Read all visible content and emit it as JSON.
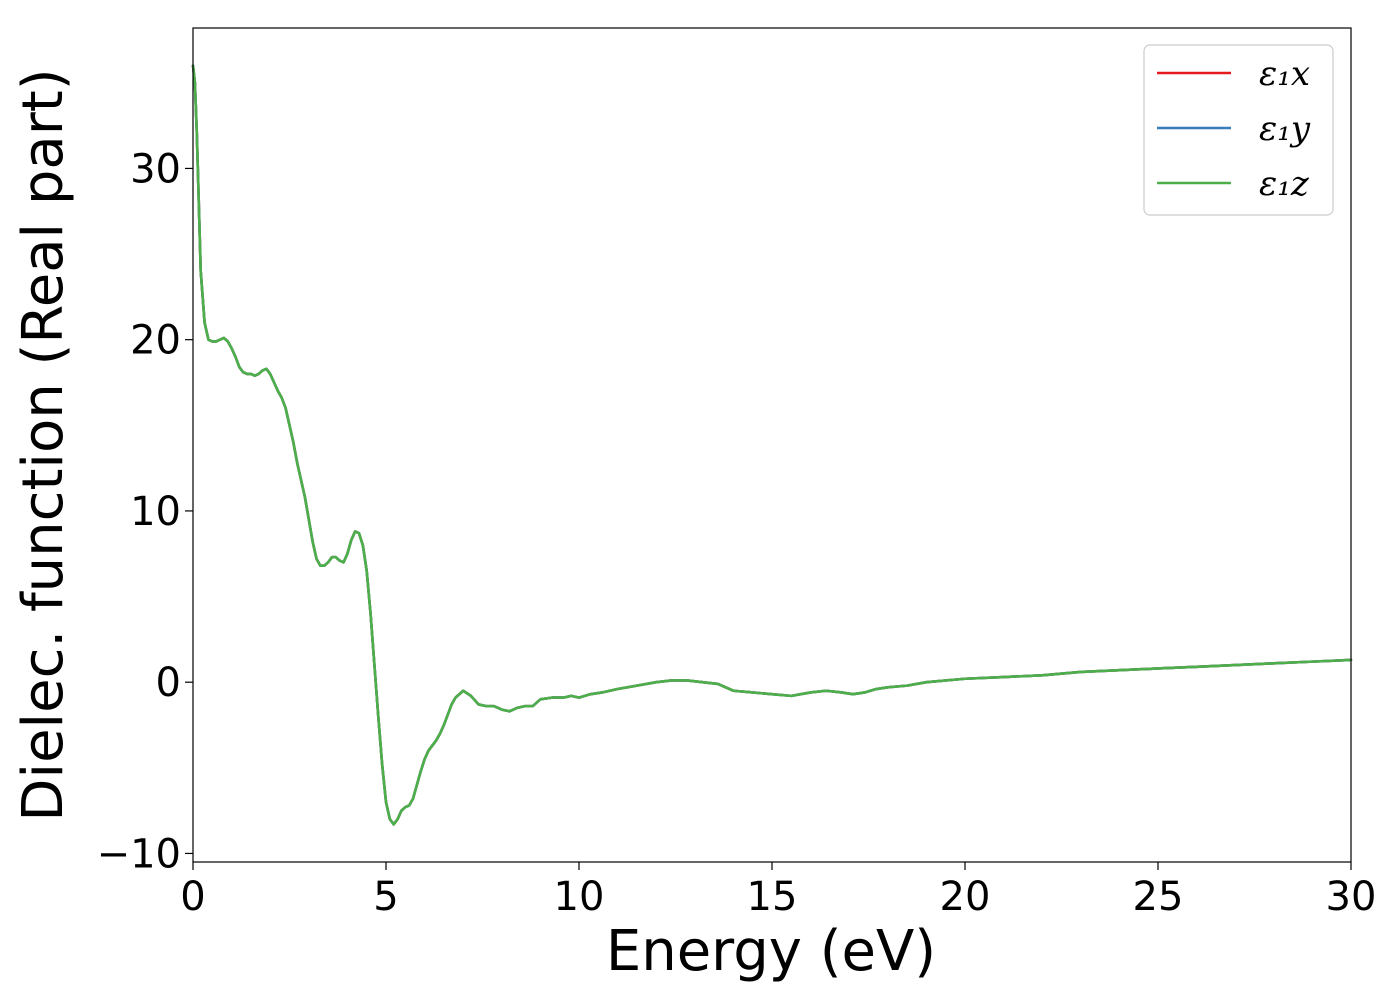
{
  "chart_data": {
    "type": "line",
    "title": "",
    "xlabel": "Energy (eV)",
    "ylabel": "Dielec. function (Real part)",
    "xlim": [
      0,
      30
    ],
    "ylim": [
      -10.5,
      38.2
    ],
    "xticks": [
      0,
      5,
      10,
      15,
      20,
      25,
      30
    ],
    "yticks": [
      -10,
      0,
      10,
      20,
      30
    ],
    "xtick_labels": [
      "0",
      "5",
      "10",
      "15",
      "20",
      "25",
      "30"
    ],
    "ytick_labels": [
      "−10",
      "0",
      "10",
      "20",
      "30"
    ],
    "grid": false,
    "legend_position": "top-right",
    "x": [
      0.0,
      0.05,
      0.1,
      0.2,
      0.3,
      0.4,
      0.5,
      0.6,
      0.7,
      0.8,
      0.9,
      1.0,
      1.1,
      1.2,
      1.3,
      1.4,
      1.5,
      1.6,
      1.7,
      1.8,
      1.9,
      2.0,
      2.1,
      2.2,
      2.3,
      2.4,
      2.5,
      2.6,
      2.7,
      2.8,
      2.9,
      3.0,
      3.1,
      3.2,
      3.3,
      3.4,
      3.5,
      3.6,
      3.7,
      3.8,
      3.9,
      4.0,
      4.1,
      4.2,
      4.3,
      4.4,
      4.5,
      4.6,
      4.7,
      4.8,
      4.9,
      5.0,
      5.1,
      5.2,
      5.3,
      5.4,
      5.5,
      5.6,
      5.7,
      5.8,
      5.9,
      6.0,
      6.1,
      6.2,
      6.3,
      6.4,
      6.5,
      6.6,
      6.7,
      6.8,
      7.0,
      7.2,
      7.4,
      7.6,
      7.8,
      8.0,
      8.2,
      8.4,
      8.6,
      8.8,
      9.0,
      9.3,
      9.6,
      9.8,
      10.0,
      10.3,
      10.6,
      11.0,
      11.5,
      12.0,
      12.4,
      12.8,
      13.2,
      13.6,
      14.0,
      14.5,
      15.0,
      15.5,
      16.0,
      16.4,
      16.8,
      17.1,
      17.4,
      17.7,
      18.0,
      18.5,
      19.0,
      20.0,
      21.0,
      22.0,
      23.0,
      24.0,
      25.0,
      26.0,
      27.0,
      28.0,
      29.0,
      30.0
    ],
    "series": [
      {
        "name": "ε₁x",
        "color": "#e41a1c"
      },
      {
        "name": "ε₁y",
        "color": "#377eb8"
      },
      {
        "name": "ε₁z",
        "color": "#4daf4a"
      }
    ],
    "y": [
      36.0,
      35.0,
      32.0,
      24.0,
      21.0,
      20.0,
      19.9,
      19.9,
      20.0,
      20.1,
      19.9,
      19.5,
      19.0,
      18.4,
      18.1,
      18.0,
      18.0,
      17.9,
      18.0,
      18.2,
      18.3,
      18.0,
      17.5,
      17.0,
      16.6,
      16.0,
      15.0,
      14.0,
      12.8,
      11.8,
      10.8,
      9.5,
      8.2,
      7.2,
      6.8,
      6.8,
      7.0,
      7.3,
      7.3,
      7.1,
      7.0,
      7.5,
      8.3,
      8.8,
      8.7,
      8.0,
      6.5,
      4.0,
      1.0,
      -2.0,
      -4.8,
      -7.0,
      -8.0,
      -8.3,
      -8.0,
      -7.5,
      -7.3,
      -7.2,
      -6.8,
      -6.0,
      -5.2,
      -4.5,
      -4.0,
      -3.7,
      -3.4,
      -3.0,
      -2.5,
      -1.9,
      -1.3,
      -0.9,
      -0.5,
      -0.8,
      -1.3,
      -1.4,
      -1.4,
      -1.6,
      -1.7,
      -1.5,
      -1.4,
      -1.4,
      -1.0,
      -0.9,
      -0.9,
      -0.8,
      -0.9,
      -0.7,
      -0.6,
      -0.4,
      -0.2,
      0.0,
      0.1,
      0.1,
      0.0,
      -0.1,
      -0.5,
      -0.6,
      -0.7,
      -0.8,
      -0.6,
      -0.5,
      -0.6,
      -0.7,
      -0.6,
      -0.4,
      -0.3,
      -0.2,
      0.0,
      0.2,
      0.3,
      0.4,
      0.6,
      0.7,
      0.8,
      0.9,
      1.0,
      1.1,
      1.2,
      1.3
    ]
  }
}
